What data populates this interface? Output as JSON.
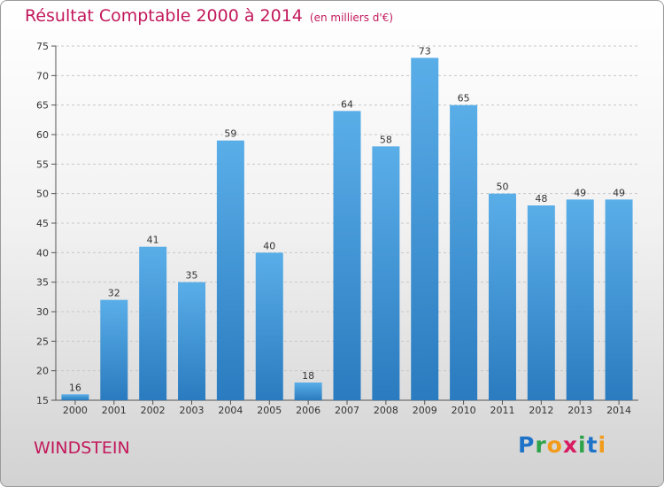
{
  "title": "Résultat Comptable 2000 à 2014",
  "subtitle": "(en milliers d'€)",
  "town": "WINDSTEIN",
  "logo": [
    "P",
    "r",
    "o",
    "x",
    "i",
    "t",
    "i"
  ],
  "colors": {
    "title": "#c2185b",
    "bar_top": "#5aaee8",
    "bar_bottom": "#2a7bbf"
  },
  "chart_data": {
    "type": "bar",
    "categories": [
      "2000",
      "2001",
      "2002",
      "2003",
      "2004",
      "2005",
      "2006",
      "2007",
      "2008",
      "2009",
      "2010",
      "2011",
      "2012",
      "2013",
      "2014"
    ],
    "values": [
      16,
      32,
      41,
      35,
      59,
      40,
      18,
      64,
      58,
      73,
      65,
      50,
      48,
      49,
      49
    ],
    "title": "Résultat Comptable 2000 à 2014",
    "xlabel": "",
    "ylabel": "",
    "ylim": [
      15,
      75
    ],
    "yticks": [
      15,
      20,
      25,
      30,
      35,
      40,
      45,
      50,
      55,
      60,
      65,
      70,
      75
    ],
    "grid": true,
    "data_labels": true
  }
}
